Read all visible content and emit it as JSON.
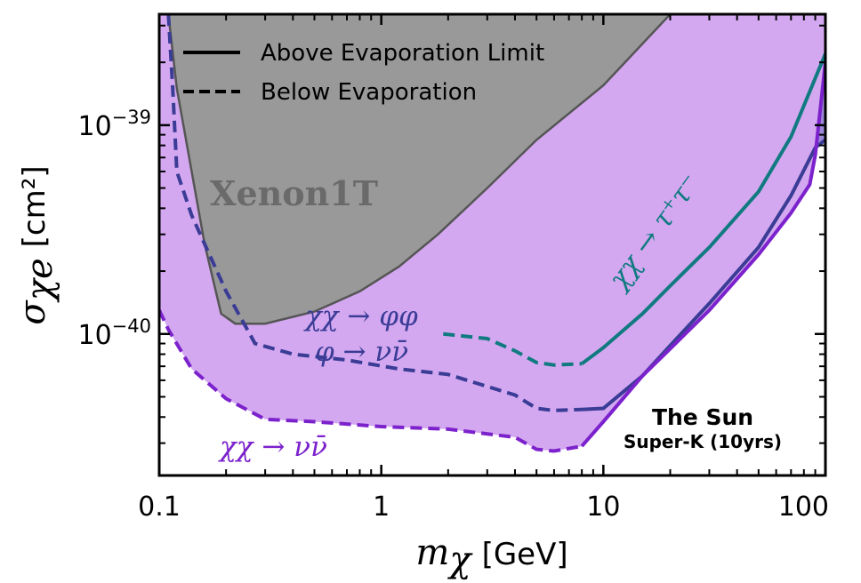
{
  "chart_data": {
    "type": "area",
    "xscale": "log",
    "yscale": "log",
    "xlim": [
      0.1,
      100
    ],
    "ylim": [
      2.1e-41,
      3.4e-39
    ],
    "xlabel_var": "m",
    "xlabel_sub": "χ",
    "xlabel_unit": "[GeV]",
    "ylabel_var": "σ",
    "ylabel_sub": "χe",
    "ylabel_unit": "[cm²]",
    "x_ticks": [
      {
        "value": 0.1,
        "label": "0.1"
      },
      {
        "value": 1,
        "label": "1"
      },
      {
        "value": 10,
        "label": "10"
      },
      {
        "value": 100,
        "label": "100"
      }
    ],
    "y_ticks": [
      {
        "value": 1e-40,
        "base": "10",
        "exp": "−40"
      },
      {
        "value": 1e-39,
        "base": "10",
        "exp": "−39"
      }
    ],
    "legend": {
      "placement": "top-left",
      "entries": [
        {
          "style": "solid",
          "label": "Above Evaporation Limit"
        },
        {
          "style": "dashed",
          "label": "Below Evaporation"
        }
      ]
    },
    "annotations": {
      "xenon": "Xenon1T",
      "phi_line1": "χχ → φφ",
      "phi_line2": "φ → νν̄",
      "nu": "χχ → νν̄",
      "tau": "χχ → τ⁺τ⁻",
      "sun_title": "The Sun",
      "sun_sub": "Super-K (10yrs)"
    },
    "series": [
      {
        "id": "xenon",
        "fill": "#999999",
        "line": "#555555",
        "points": [
          [
            0.11,
            3.4e-39
          ],
          [
            0.12,
            1.5e-39
          ],
          [
            0.14,
            6e-40
          ],
          [
            0.16,
            2.7e-40
          ],
          [
            0.19,
            1.25e-40
          ],
          [
            0.22,
            1.12e-40
          ],
          [
            0.3,
            1.12e-40
          ],
          [
            0.5,
            1.28e-40
          ],
          [
            0.8,
            1.6e-40
          ],
          [
            1.2,
            2.1e-40
          ],
          [
            1.8,
            3e-40
          ],
          [
            3,
            5e-40
          ],
          [
            5,
            8.5e-40
          ],
          [
            10,
            1.55e-39
          ],
          [
            20,
            3.4e-39
          ]
        ]
      },
      {
        "id": "tautau",
        "name": "χχ → τ⁺τ⁻",
        "fill": "#6a7eb6",
        "line": "#117a80",
        "solid_from": 8,
        "points": [
          [
            1.9,
            1e-40
          ],
          [
            3,
            9.5e-41
          ],
          [
            4,
            8.3e-41
          ],
          [
            5,
            7.3e-41
          ],
          [
            6,
            7.1e-41
          ],
          [
            8,
            7.2e-41
          ],
          [
            10,
            8.6e-41
          ],
          [
            15,
            1.25e-40
          ],
          [
            20,
            1.7e-40
          ],
          [
            30,
            2.6e-40
          ],
          [
            50,
            4.8e-40
          ],
          [
            70,
            8.8e-40
          ],
          [
            100,
            2.2e-39
          ]
        ]
      },
      {
        "id": "phiphi",
        "name": "χχ → φφ, φ → νν̄",
        "fill": "#9b88d6",
        "line": "#3a3c96",
        "solid_from": 8,
        "points": [
          [
            0.11,
            3.4e-39
          ],
          [
            0.115,
            1.5e-39
          ],
          [
            0.12,
            6e-40
          ],
          [
            0.14,
            3.7e-40
          ],
          [
            0.16,
            2.7e-40
          ],
          [
            0.2,
            1.6e-40
          ],
          [
            0.27,
            9e-41
          ],
          [
            0.4,
            8e-41
          ],
          [
            0.7,
            7.5e-41
          ],
          [
            1.2,
            6.8e-41
          ],
          [
            2,
            6.4e-41
          ],
          [
            3,
            5.6e-41
          ],
          [
            4,
            5.1e-41
          ],
          [
            5,
            4.4e-41
          ],
          [
            6,
            4.3e-41
          ],
          [
            8,
            4.35e-41
          ],
          [
            10,
            4.4e-41
          ],
          [
            15,
            6.3e-41
          ],
          [
            20,
            8.8e-41
          ],
          [
            30,
            1.4e-40
          ],
          [
            50,
            2.6e-40
          ],
          [
            70,
            4.6e-40
          ],
          [
            90,
            7.8e-40
          ],
          [
            100,
            8.5e-40
          ]
        ]
      },
      {
        "id": "nunu",
        "name": "χχ → νν̄",
        "fill": "#d3a8f0",
        "line": "#7c22cc",
        "solid_from": 8,
        "points": [
          [
            0.1,
            1.3e-40
          ],
          [
            0.11,
            1.05e-40
          ],
          [
            0.14,
            6.8e-41
          ],
          [
            0.2,
            4.9e-41
          ],
          [
            0.3,
            3.9e-41
          ],
          [
            0.5,
            3.8e-41
          ],
          [
            1,
            3.6e-41
          ],
          [
            2,
            3.5e-41
          ],
          [
            4,
            3.2e-41
          ],
          [
            5,
            2.8e-41
          ],
          [
            6,
            2.75e-41
          ],
          [
            8,
            2.9e-41
          ],
          [
            10,
            3.8e-41
          ],
          [
            15,
            6.3e-41
          ],
          [
            20,
            8.5e-41
          ],
          [
            30,
            1.3e-40
          ],
          [
            50,
            2.4e-40
          ],
          [
            70,
            3.8e-40
          ],
          [
            85,
            5.2e-40
          ],
          [
            90,
            7.2e-40
          ],
          [
            100,
            2e-39
          ]
        ]
      }
    ]
  }
}
